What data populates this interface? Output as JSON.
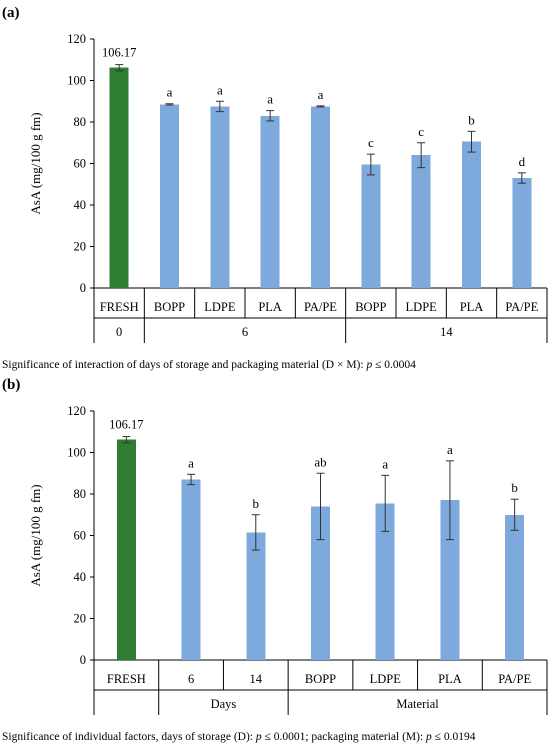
{
  "chart_data": [
    {
      "type": "bar",
      "panel_label": "(a)",
      "ylabel": "AsA (mg/100 g fm)",
      "ylim": [
        0,
        120
      ],
      "yticks": [
        0,
        20,
        40,
        60,
        80,
        100,
        120
      ],
      "grid": false,
      "categories": [
        "FRESH",
        "BOPP",
        "LDPE",
        "PLA",
        "PA/PE",
        "BOPP",
        "LDPE",
        "PLA",
        "PA/PE"
      ],
      "groups": [
        {
          "label": "0",
          "span": 1
        },
        {
          "label": "6",
          "span": 4
        },
        {
          "label": "14",
          "span": 4
        }
      ],
      "values": [
        106.17,
        88.5,
        87.5,
        83,
        87.5,
        59.5,
        64,
        70.5,
        53
      ],
      "errors": [
        1.5,
        0.3,
        2.5,
        2.5,
        0.3,
        5,
        6,
        5,
        2.5
      ],
      "significance": [
        "",
        "a",
        "a",
        "a",
        "a",
        "c",
        "c",
        "b",
        "d"
      ],
      "value_label": "106.17",
      "colors": [
        "#2e7d32",
        "#7ea9dc",
        "#7ea9dc",
        "#7ea9dc",
        "#7ea9dc",
        "#7ea9dc",
        "#7ea9dc",
        "#7ea9dc",
        "#7ea9dc"
      ],
      "caption_main": "Significance of interaction of days of storage and packaging material (D × M):",
      "caption_p": "p",
      "caption_value": " ≤ 0.0004"
    },
    {
      "type": "bar",
      "panel_label": "(b)",
      "ylabel": "AsA (mg/100 g fm)",
      "ylim": [
        0,
        120
      ],
      "yticks": [
        0,
        20,
        40,
        60,
        80,
        100,
        120
      ],
      "grid": false,
      "categories": [
        "FRESH",
        "6",
        "14",
        "BOPP",
        "LDPE",
        "PLA",
        "PA/PE"
      ],
      "groups": [
        {
          "label": "",
          "span": 1
        },
        {
          "label": "Days",
          "span": 2
        },
        {
          "label": "Material",
          "span": 4
        }
      ],
      "values": [
        106.17,
        87,
        61.5,
        74,
        75.5,
        77,
        70
      ],
      "errors": [
        1.5,
        2.5,
        8.5,
        16,
        13.5,
        19,
        7.5
      ],
      "significance": [
        "",
        "a",
        "b",
        "ab",
        "a",
        "a",
        "b"
      ],
      "value_label": "106.17",
      "colors": [
        "#2e7d32",
        "#7ea9dc",
        "#7ea9dc",
        "#7ea9dc",
        "#7ea9dc",
        "#7ea9dc",
        "#7ea9dc"
      ],
      "caption_main": "Significance of individual factors, days of storage (D):",
      "caption_p": "p",
      "caption_value": " ≤ 0.0001; packaging material (M):",
      "caption_p2": "p",
      "caption_value2": " ≤ 0.0194"
    }
  ]
}
